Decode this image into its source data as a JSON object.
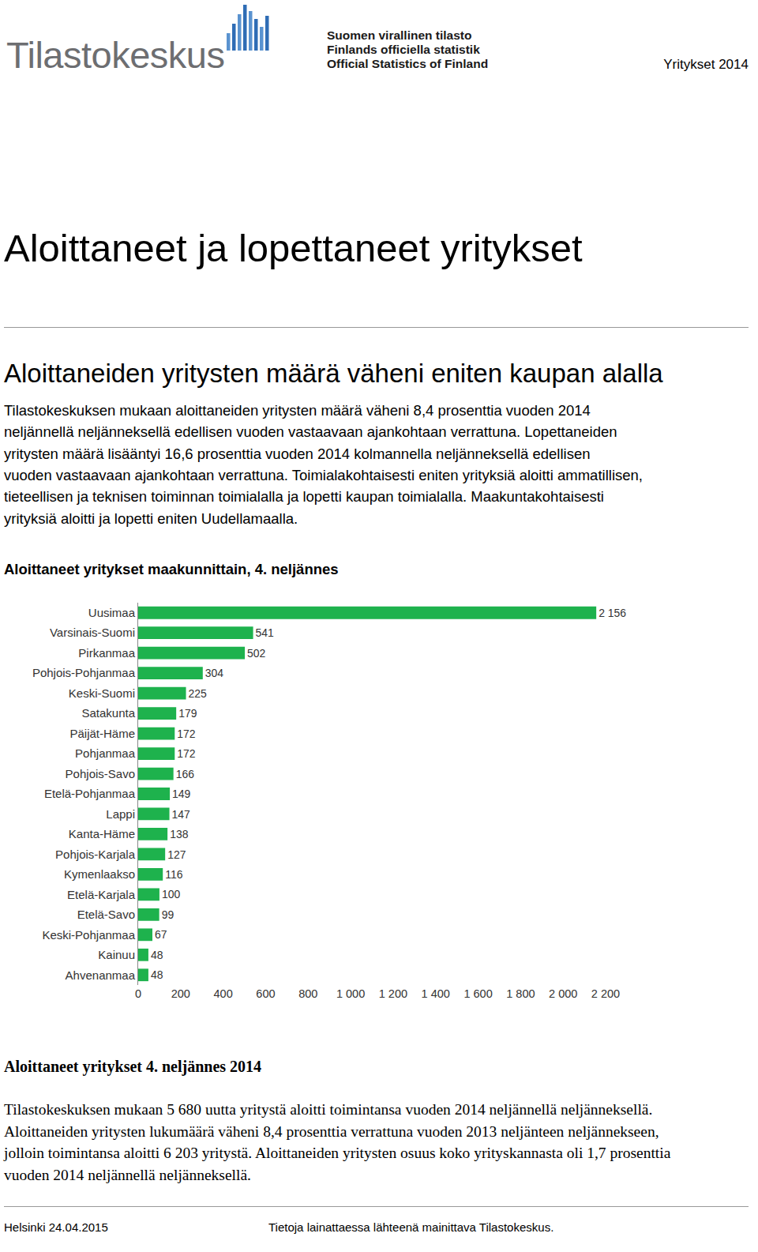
{
  "header": {
    "logo": "Tilastokeskus",
    "official": [
      "Suomen virallinen tilasto",
      "Finlands officiella statistik",
      "Official Statistics of Finland"
    ],
    "publication": "Yritykset 2014"
  },
  "title": "Aloittaneet ja lopettaneet yritykset",
  "subtitle": "Aloittaneiden yritysten määrä väheni eniten kaupan alalla",
  "summary": [
    "Tilastokeskuksen mukaan aloittaneiden yritysten määrä väheni 8,4 prosenttia vuoden 2014",
    "neljännellä neljänneksellä edellisen vuoden vastaavaan ajankohtaan verrattuna. Lopettaneiden",
    "yritysten määrä lisääntyi 16,6 prosenttia vuoden 2014 kolmannella neljänneksellä edellisen",
    "vuoden vastaavaan ajankohtaan verrattuna. Toimialakohtaisesti eniten yrityksiä aloitti ammatillisen,",
    "tieteellisen ja teknisen toiminnan toimialalla ja lopetti kaupan toimialalla. Maakuntakohtaisesti",
    "yrityksiä aloitti ja lopetti eniten Uudellamaalla."
  ],
  "chart_data": {
    "type": "bar",
    "title": "Aloittaneet yritykset maakunnittain, 4. neljännes",
    "orientation": "horizontal",
    "categories": [
      "Uusimaa",
      "Varsinais-Suomi",
      "Pirkanmaa",
      "Pohjois-Pohjanmaa",
      "Keski-Suomi",
      "Satakunta",
      "Päijät-Häme",
      "Pohjanmaa",
      "Pohjois-Savo",
      "Etelä-Pohjanmaa",
      "Lappi",
      "Kanta-Häme",
      "Pohjois-Karjala",
      "Kymenlaakso",
      "Etelä-Karjala",
      "Etelä-Savo",
      "Keski-Pohjanmaa",
      "Kainuu",
      "Ahvenanmaa"
    ],
    "values": [
      2156,
      541,
      502,
      304,
      225,
      179,
      172,
      172,
      166,
      149,
      147,
      138,
      127,
      116,
      100,
      99,
      67,
      48,
      48
    ],
    "value_labels": [
      "2 156",
      "541",
      "502",
      "304",
      "225",
      "179",
      "172",
      "172",
      "166",
      "149",
      "147",
      "138",
      "127",
      "116",
      "100",
      "99",
      "67",
      "48",
      "48"
    ],
    "data_labels": true,
    "color": "#1eb24d",
    "xlim": [
      0,
      2200
    ],
    "xticks": [
      0,
      200,
      400,
      600,
      800,
      {
        "value": 1000,
        "label": "1 000"
      },
      {
        "value": 1200,
        "label": "1 200"
      },
      {
        "value": 1400,
        "label": "1 400"
      },
      {
        "value": 1600,
        "label": "1 600"
      },
      {
        "value": 1800,
        "label": "1 800"
      },
      {
        "value": 2000,
        "label": "2 000"
      },
      {
        "value": 2200,
        "label": "2 200"
      }
    ],
    "grid": false
  },
  "section": {
    "heading": "Aloittaneet yritykset 4. neljännes 2014",
    "lines": [
      "Tilastokeskuksen mukaan 5 680 uutta yritystä aloitti toimintansa vuoden 2014 neljännellä neljänneksellä.",
      "Aloittaneiden yritysten lukumäärä väheni 8,4 prosenttia verrattuna vuoden 2013 neljänteen neljännekseen,",
      "jolloin toimintansa aloitti 6 203 yritystä. Aloittaneiden yritysten osuus koko yrityskannasta oli 1,7 prosenttia",
      "vuoden 2014 neljännellä neljänneksellä."
    ]
  },
  "footer": {
    "left": "Helsinki 24.04.2015",
    "right": "Tietoja lainattaessa lähteenä mainittava Tilastokeskus."
  }
}
